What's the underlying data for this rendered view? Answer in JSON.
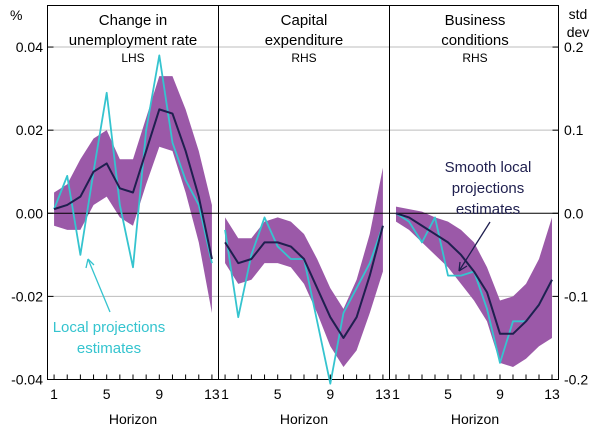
{
  "chart_data": {
    "type": "line",
    "left_axis_unit": "%",
    "right_axis_unit_line1": "std",
    "right_axis_unit_line2": "dev",
    "left_axis": {
      "ylim": [
        -0.04,
        0.05
      ],
      "ticks": [
        "0.04",
        "0.02",
        "0.00",
        "-0.02",
        "-0.04"
      ],
      "tick_values": [
        0.04,
        0.02,
        0,
        -0.02,
        -0.04
      ]
    },
    "right_axis": {
      "ylim": [
        -0.2,
        0.25
      ],
      "ticks": [
        "0.2",
        "0.1",
        "0.0",
        "-0.1",
        "-0.2"
      ],
      "tick_values": [
        0.2,
        0.1,
        0,
        -0.1,
        -0.2
      ]
    },
    "x_ticks": [
      "1",
      "5",
      "9",
      "13"
    ],
    "x_tick_values": [
      1,
      5,
      9,
      13
    ],
    "xlim": [
      0.5,
      13.5
    ],
    "colors": {
      "band": "#9b59a8",
      "smooth": "#1f1f4f",
      "local": "#35c4cf",
      "zero": "#000000",
      "grid": "#bdbdbd"
    },
    "panels": [
      {
        "title_line1": "Change in",
        "title_line2": "unemployment rate",
        "side": "LHS",
        "axis": "left",
        "xlabel": "Horizon",
        "x": [
          1,
          2,
          3,
          4,
          5,
          6,
          7,
          8,
          9,
          10,
          11,
          12,
          13
        ],
        "smooth": [
          0.001,
          0.002,
          0.004,
          0.01,
          0.012,
          0.006,
          0.005,
          0.015,
          0.025,
          0.024,
          0.015,
          0.004,
          -0.011
        ],
        "lower": [
          -0.003,
          -0.004,
          -0.004,
          0.002,
          0.004,
          -0.001,
          -0.003,
          0.007,
          0.016,
          0.015,
          0.005,
          -0.007,
          -0.024
        ],
        "upper": [
          0.005,
          0.007,
          0.013,
          0.018,
          0.02,
          0.013,
          0.013,
          0.023,
          0.033,
          0.033,
          0.025,
          0.015,
          0.002
        ],
        "local": [
          0.001,
          0.009,
          -0.01,
          0.01,
          0.029,
          0.002,
          -0.013,
          0.02,
          0.038,
          0.017,
          0.008,
          0.002,
          -0.012
        ]
      },
      {
        "title_line1": "Capital",
        "title_line2": "expenditure",
        "side": "RHS",
        "axis": "right",
        "xlabel": "Horizon",
        "x": [
          1,
          2,
          3,
          4,
          5,
          6,
          7,
          8,
          9,
          10,
          11,
          12,
          13
        ],
        "smooth": [
          -0.035,
          -0.06,
          -0.055,
          -0.035,
          -0.035,
          -0.04,
          -0.055,
          -0.09,
          -0.125,
          -0.15,
          -0.125,
          -0.075,
          -0.015
        ],
        "lower": [
          -0.06,
          -0.085,
          -0.08,
          -0.06,
          -0.06,
          -0.065,
          -0.085,
          -0.12,
          -0.16,
          -0.185,
          -0.165,
          -0.12,
          -0.07
        ],
        "upper": [
          -0.005,
          -0.03,
          -0.03,
          -0.01,
          -0.005,
          -0.01,
          -0.025,
          -0.055,
          -0.09,
          -0.115,
          -0.08,
          -0.025,
          0.055
        ],
        "local": [
          -0.02,
          -0.125,
          -0.05,
          -0.005,
          -0.04,
          -0.055,
          -0.055,
          -0.13,
          -0.205,
          -0.12,
          -0.09,
          -0.06,
          -0.015
        ]
      },
      {
        "title_line1": "Business",
        "title_line2": "conditions",
        "side": "RHS",
        "axis": "right",
        "xlabel": "Horizon",
        "x": [
          1,
          2,
          3,
          4,
          5,
          6,
          7,
          8,
          9,
          10,
          11,
          12,
          13
        ],
        "smooth": [
          0.0,
          -0.005,
          -0.015,
          -0.025,
          -0.035,
          -0.05,
          -0.07,
          -0.095,
          -0.145,
          -0.145,
          -0.13,
          -0.11,
          -0.08
        ],
        "lower": [
          -0.01,
          -0.02,
          -0.035,
          -0.05,
          -0.065,
          -0.085,
          -0.105,
          -0.13,
          -0.18,
          -0.185,
          -0.175,
          -0.16,
          -0.15
        ],
        "upper": [
          0.008,
          0.005,
          0.002,
          -0.005,
          -0.01,
          -0.02,
          -0.035,
          -0.065,
          -0.105,
          -0.1,
          -0.085,
          -0.055,
          -0.005
        ],
        "local": [
          0.0,
          -0.01,
          -0.035,
          -0.005,
          -0.075,
          -0.075,
          -0.07,
          -0.115,
          -0.18,
          -0.13,
          -0.13,
          -0.11,
          -0.08
        ]
      }
    ],
    "annotations": {
      "local_line1": "Local projections",
      "local_line2": "estimates",
      "smooth_line1": "Smooth local",
      "smooth_line2": "projections",
      "smooth_line3": "estimates"
    }
  }
}
